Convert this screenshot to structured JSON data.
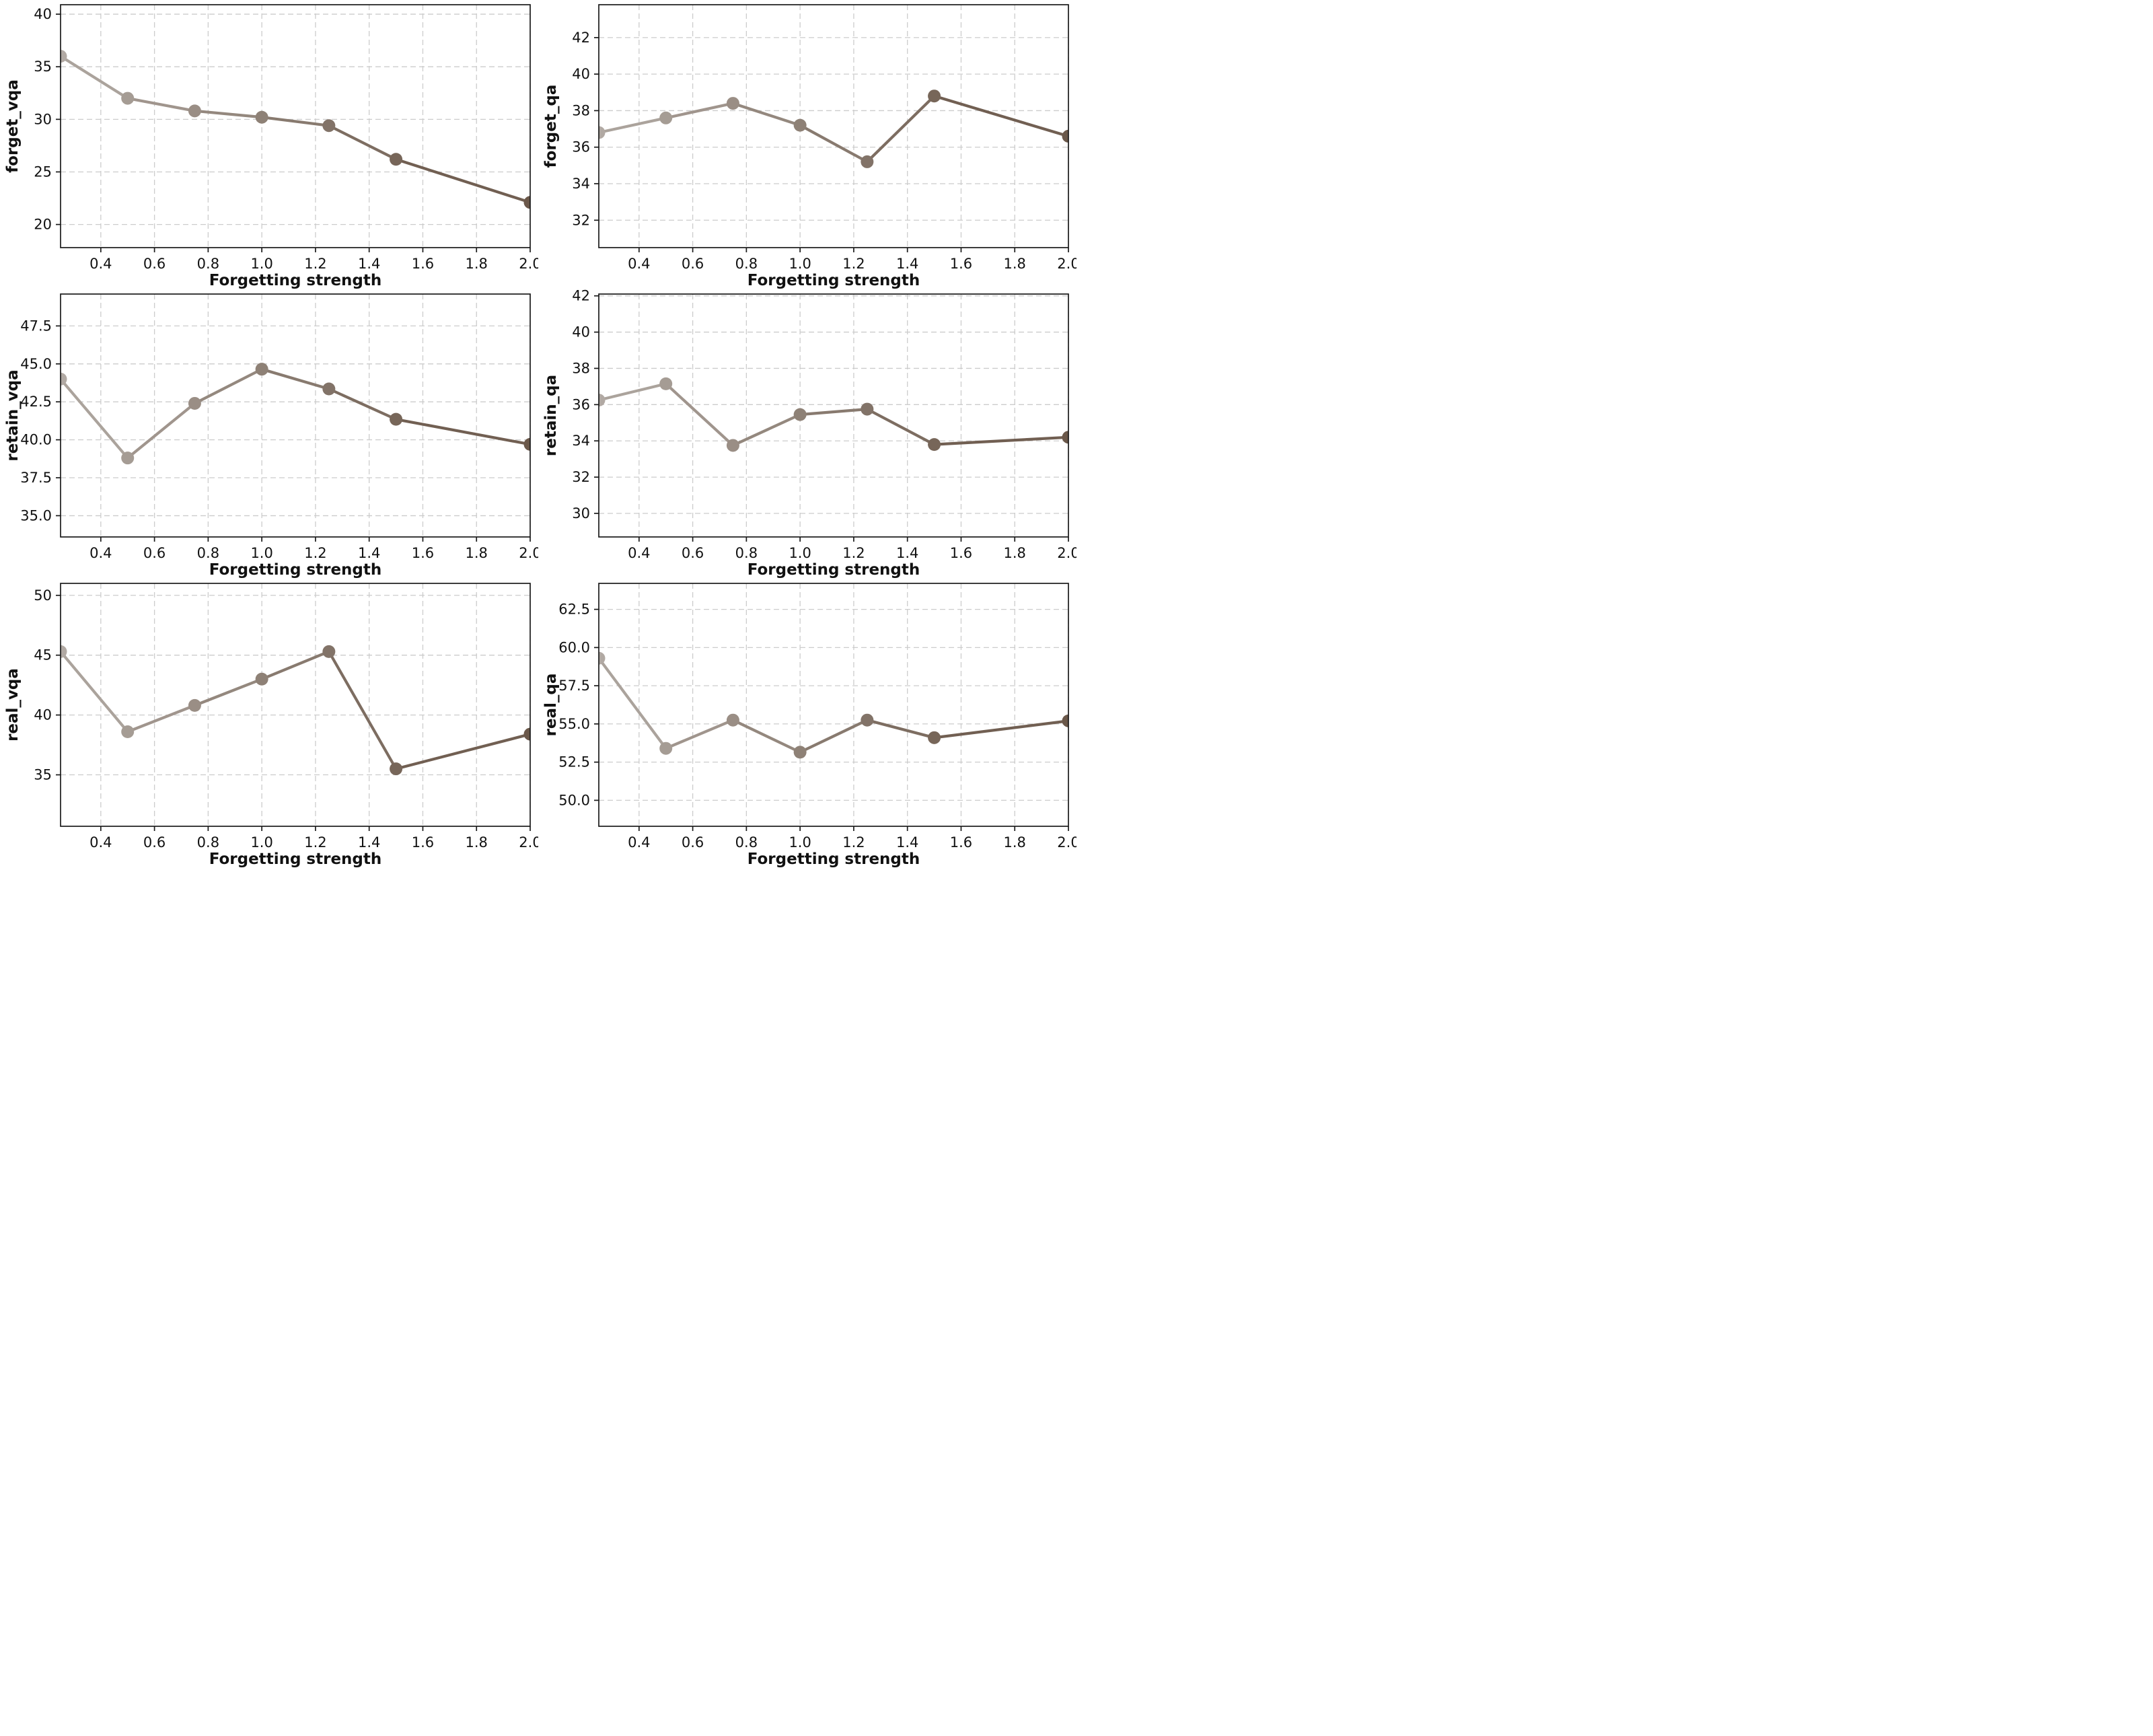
{
  "figure": {
    "background": "#ffffff",
    "n_rows": 3,
    "n_cols": 2
  },
  "style": {
    "point_colors": [
      "#b1a9a3",
      "#a59c94",
      "#9a8e85",
      "#8e8176",
      "#827368",
      "#776659",
      "#6b584a"
    ],
    "grid_color": "#cccccc",
    "spine_color": "#1a1a1a",
    "tick_label_color": "#111111",
    "axis_label_color": "#111111",
    "line_width": 4.2,
    "marker_radius": 9.5
  },
  "chart_data": [
    {
      "type": "line",
      "title": "",
      "ylabel": "forget_vqa",
      "xlabel": "Forgetting strength",
      "x": [
        0.25,
        0.5,
        0.75,
        1.0,
        1.25,
        1.5,
        2.0
      ],
      "values": [
        36.0,
        32.0,
        30.8,
        30.2,
        29.4,
        26.2,
        22.1
      ],
      "xlim": [
        0.25,
        2.0
      ],
      "ylim": [
        17.8,
        40.9
      ],
      "xticks": [
        0.4,
        0.6,
        0.8,
        1.0,
        1.2,
        1.4,
        1.6,
        1.8,
        2.0
      ],
      "xtick_labels": [
        "0.4",
        "0.6",
        "0.8",
        "1.0",
        "1.2",
        "1.4",
        "1.6",
        "1.8",
        "2.0"
      ],
      "yticks": [
        20,
        25,
        30,
        35,
        40
      ],
      "ytick_labels": [
        "20",
        "25",
        "30",
        "35",
        "40"
      ],
      "grid": true,
      "legend": null
    },
    {
      "type": "line",
      "title": "",
      "ylabel": "forget_qa",
      "xlabel": "Forgetting strength",
      "x": [
        0.25,
        0.5,
        0.75,
        1.0,
        1.25,
        1.5,
        2.0
      ],
      "values": [
        36.8,
        37.6,
        38.4,
        37.2,
        35.2,
        38.8,
        36.6
      ],
      "xlim": [
        0.25,
        2.0
      ],
      "ylim": [
        30.5,
        43.8
      ],
      "xticks": [
        0.4,
        0.6,
        0.8,
        1.0,
        1.2,
        1.4,
        1.6,
        1.8,
        2.0
      ],
      "xtick_labels": [
        "0.4",
        "0.6",
        "0.8",
        "1.0",
        "1.2",
        "1.4",
        "1.6",
        "1.8",
        "2.0"
      ],
      "yticks": [
        32,
        34,
        36,
        38,
        40,
        42
      ],
      "ytick_labels": [
        "32",
        "34",
        "36",
        "38",
        "40",
        "42"
      ],
      "grid": true,
      "legend": null
    },
    {
      "type": "line",
      "title": "",
      "ylabel": "retain_vqa",
      "xlabel": "Forgetting strength",
      "x": [
        0.25,
        0.5,
        0.75,
        1.0,
        1.25,
        1.5,
        2.0
      ],
      "values": [
        44.0,
        38.8,
        42.4,
        44.65,
        43.35,
        41.35,
        39.7
      ],
      "xlim": [
        0.25,
        2.0
      ],
      "ylim": [
        33.6,
        49.6
      ],
      "xticks": [
        0.4,
        0.6,
        0.8,
        1.0,
        1.2,
        1.4,
        1.6,
        1.8,
        2.0
      ],
      "xtick_labels": [
        "0.4",
        "0.6",
        "0.8",
        "1.0",
        "1.2",
        "1.4",
        "1.6",
        "1.8",
        "2.0"
      ],
      "yticks": [
        35.0,
        37.5,
        40.0,
        42.5,
        45.0,
        47.5
      ],
      "ytick_labels": [
        "35.0",
        "37.5",
        "40.0",
        "42.5",
        "45.0",
        "47.5"
      ],
      "grid": true,
      "legend": null
    },
    {
      "type": "line",
      "title": "",
      "ylabel": "retain_qa",
      "xlabel": "Forgetting strength",
      "x": [
        0.25,
        0.5,
        0.75,
        1.0,
        1.25,
        1.5,
        2.0
      ],
      "values": [
        36.25,
        37.15,
        33.75,
        35.45,
        35.75,
        33.8,
        34.2
      ],
      "xlim": [
        0.25,
        2.0
      ],
      "ylim": [
        28.7,
        42.1
      ],
      "xticks": [
        0.4,
        0.6,
        0.8,
        1.0,
        1.2,
        1.4,
        1.6,
        1.8,
        2.0
      ],
      "xtick_labels": [
        "0.4",
        "0.6",
        "0.8",
        "1.0",
        "1.2",
        "1.4",
        "1.6",
        "1.8",
        "2.0"
      ],
      "yticks": [
        30,
        32,
        34,
        36,
        38,
        40,
        42
      ],
      "ytick_labels": [
        "30",
        "32",
        "34",
        "36",
        "38",
        "40",
        "42"
      ],
      "grid": true,
      "legend": null
    },
    {
      "type": "line",
      "title": "",
      "ylabel": "real_vqa",
      "xlabel": "Forgetting strength",
      "x": [
        0.25,
        0.5,
        0.75,
        1.0,
        1.25,
        1.5,
        2.0
      ],
      "values": [
        45.3,
        38.6,
        40.8,
        43.0,
        45.3,
        35.5,
        38.4
      ],
      "xlim": [
        0.25,
        2.0
      ],
      "ylim": [
        30.7,
        51.0
      ],
      "xticks": [
        0.4,
        0.6,
        0.8,
        1.0,
        1.2,
        1.4,
        1.6,
        1.8,
        2.0
      ],
      "xtick_labels": [
        "0.4",
        "0.6",
        "0.8",
        "1.0",
        "1.2",
        "1.4",
        "1.6",
        "1.8",
        "2.0"
      ],
      "yticks": [
        35,
        40,
        45,
        50
      ],
      "ytick_labels": [
        "35",
        "40",
        "45",
        "50"
      ],
      "grid": true,
      "legend": null
    },
    {
      "type": "line",
      "title": "",
      "ylabel": "real_qa",
      "xlabel": "Forgetting strength",
      "x": [
        0.25,
        0.5,
        0.75,
        1.0,
        1.25,
        1.5,
        2.0
      ],
      "values": [
        59.3,
        53.4,
        55.25,
        53.15,
        55.25,
        54.1,
        55.2
      ],
      "xlim": [
        0.25,
        2.0
      ],
      "ylim": [
        48.3,
        64.2
      ],
      "xticks": [
        0.4,
        0.6,
        0.8,
        1.0,
        1.2,
        1.4,
        1.6,
        1.8,
        2.0
      ],
      "xtick_labels": [
        "0.4",
        "0.6",
        "0.8",
        "1.0",
        "1.2",
        "1.4",
        "1.6",
        "1.8",
        "2.0"
      ],
      "yticks": [
        50.0,
        52.5,
        55.0,
        57.5,
        60.0,
        62.5
      ],
      "ytick_labels": [
        "50.0",
        "52.5",
        "55.0",
        "57.5",
        "60.0",
        "62.5"
      ],
      "grid": true,
      "legend": null
    }
  ]
}
